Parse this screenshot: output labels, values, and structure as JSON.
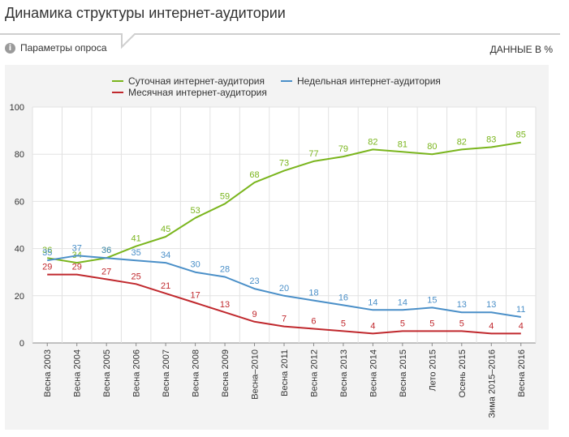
{
  "header": {
    "title": "Динамика структуры интернет-аудитории",
    "params_label": "Параметры опроса",
    "units_label": "ДАННЫЕ В %",
    "info_icon": "info-icon"
  },
  "chart_data": {
    "type": "line",
    "categories": [
      "Весна 2003",
      "Весна 2004",
      "Весна 2005",
      "Весна 2006",
      "Весна 2007",
      "Весна 2008",
      "Весна 2009",
      "Весна–2010",
      "Весна 2011",
      "Весна 2012",
      "Весна 2013",
      "Весна 2014",
      "Весна 2015",
      "Лето 2015",
      "Осень 2015",
      "Зима 2015–2016",
      "Весна 2016"
    ],
    "ylim": [
      0,
      100
    ],
    "yticks": [
      0,
      20,
      40,
      60,
      80,
      100
    ],
    "grid": true,
    "legend_position": "top",
    "series": [
      {
        "name": "Суточная интернет-аудитория",
        "color": "#7ab51d",
        "values": [
          36,
          34,
          36,
          41,
          45,
          53,
          59,
          68,
          73,
          77,
          79,
          82,
          81,
          80,
          82,
          83,
          85
        ]
      },
      {
        "name": "Недельная интернет-аудитория",
        "color": "#4a8fc8",
        "values": [
          35,
          37,
          36,
          35,
          34,
          30,
          28,
          23,
          20,
          18,
          16,
          14,
          14,
          15,
          13,
          13,
          11
        ]
      },
      {
        "name": "Месячная интернет-аудитория",
        "color": "#c0282d",
        "values": [
          29,
          29,
          27,
          25,
          21,
          17,
          13,
          9,
          7,
          6,
          5,
          4,
          5,
          5,
          5,
          4,
          4
        ]
      }
    ]
  }
}
